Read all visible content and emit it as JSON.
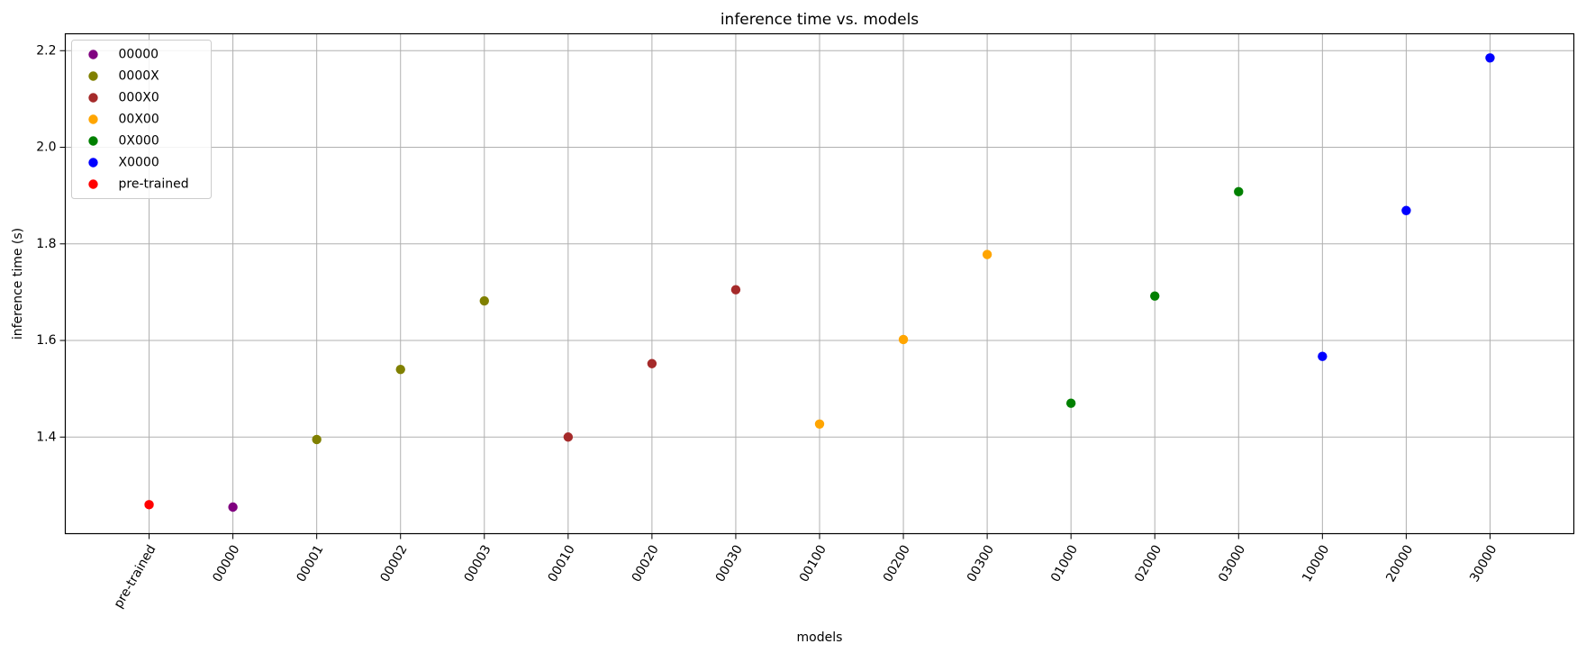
{
  "chart_data": {
    "type": "scatter",
    "title": "inference time vs. models",
    "xlabel": "models",
    "ylabel": "inference time (s)",
    "categories": [
      "pre-trained",
      "00000",
      "00001",
      "00002",
      "00003",
      "00010",
      "00020",
      "00030",
      "00100",
      "00200",
      "00300",
      "01000",
      "02000",
      "03000",
      "10000",
      "20000",
      "30000"
    ],
    "ylim": [
      1.2,
      2.235
    ],
    "yticks": [
      1.4,
      1.6,
      1.8,
      2.0,
      2.2
    ],
    "ytick_labels": [
      "1.4",
      "1.6",
      "1.8",
      "2.0",
      "2.2"
    ],
    "grid": true,
    "legend_position": "top-left",
    "series": [
      {
        "name": "00000",
        "color": "#800080",
        "points": [
          {
            "x": "00000",
            "y": 1.255
          }
        ]
      },
      {
        "name": "0000X",
        "color": "#808000",
        "points": [
          {
            "x": "00001",
            "y": 1.395
          },
          {
            "x": "00002",
            "y": 1.54
          },
          {
            "x": "00003",
            "y": 1.682
          }
        ]
      },
      {
        "name": "000X0",
        "color": "#a52a2a",
        "points": [
          {
            "x": "00010",
            "y": 1.4
          },
          {
            "x": "00020",
            "y": 1.552
          },
          {
            "x": "00030",
            "y": 1.705
          }
        ]
      },
      {
        "name": "00X00",
        "color": "#ffa500",
        "points": [
          {
            "x": "00100",
            "y": 1.427
          },
          {
            "x": "00200",
            "y": 1.602
          },
          {
            "x": "00300",
            "y": 1.778
          }
        ]
      },
      {
        "name": "0X000",
        "color": "#008000",
        "points": [
          {
            "x": "01000",
            "y": 1.47
          },
          {
            "x": "02000",
            "y": 1.692
          },
          {
            "x": "03000",
            "y": 1.908
          }
        ]
      },
      {
        "name": "X0000",
        "color": "#0000ff",
        "points": [
          {
            "x": "10000",
            "y": 1.567
          },
          {
            "x": "20000",
            "y": 1.869
          },
          {
            "x": "30000",
            "y": 2.185
          }
        ]
      },
      {
        "name": "pre-trained",
        "color": "#ff0000",
        "points": [
          {
            "x": "pre-trained",
            "y": 1.26
          }
        ]
      }
    ]
  }
}
